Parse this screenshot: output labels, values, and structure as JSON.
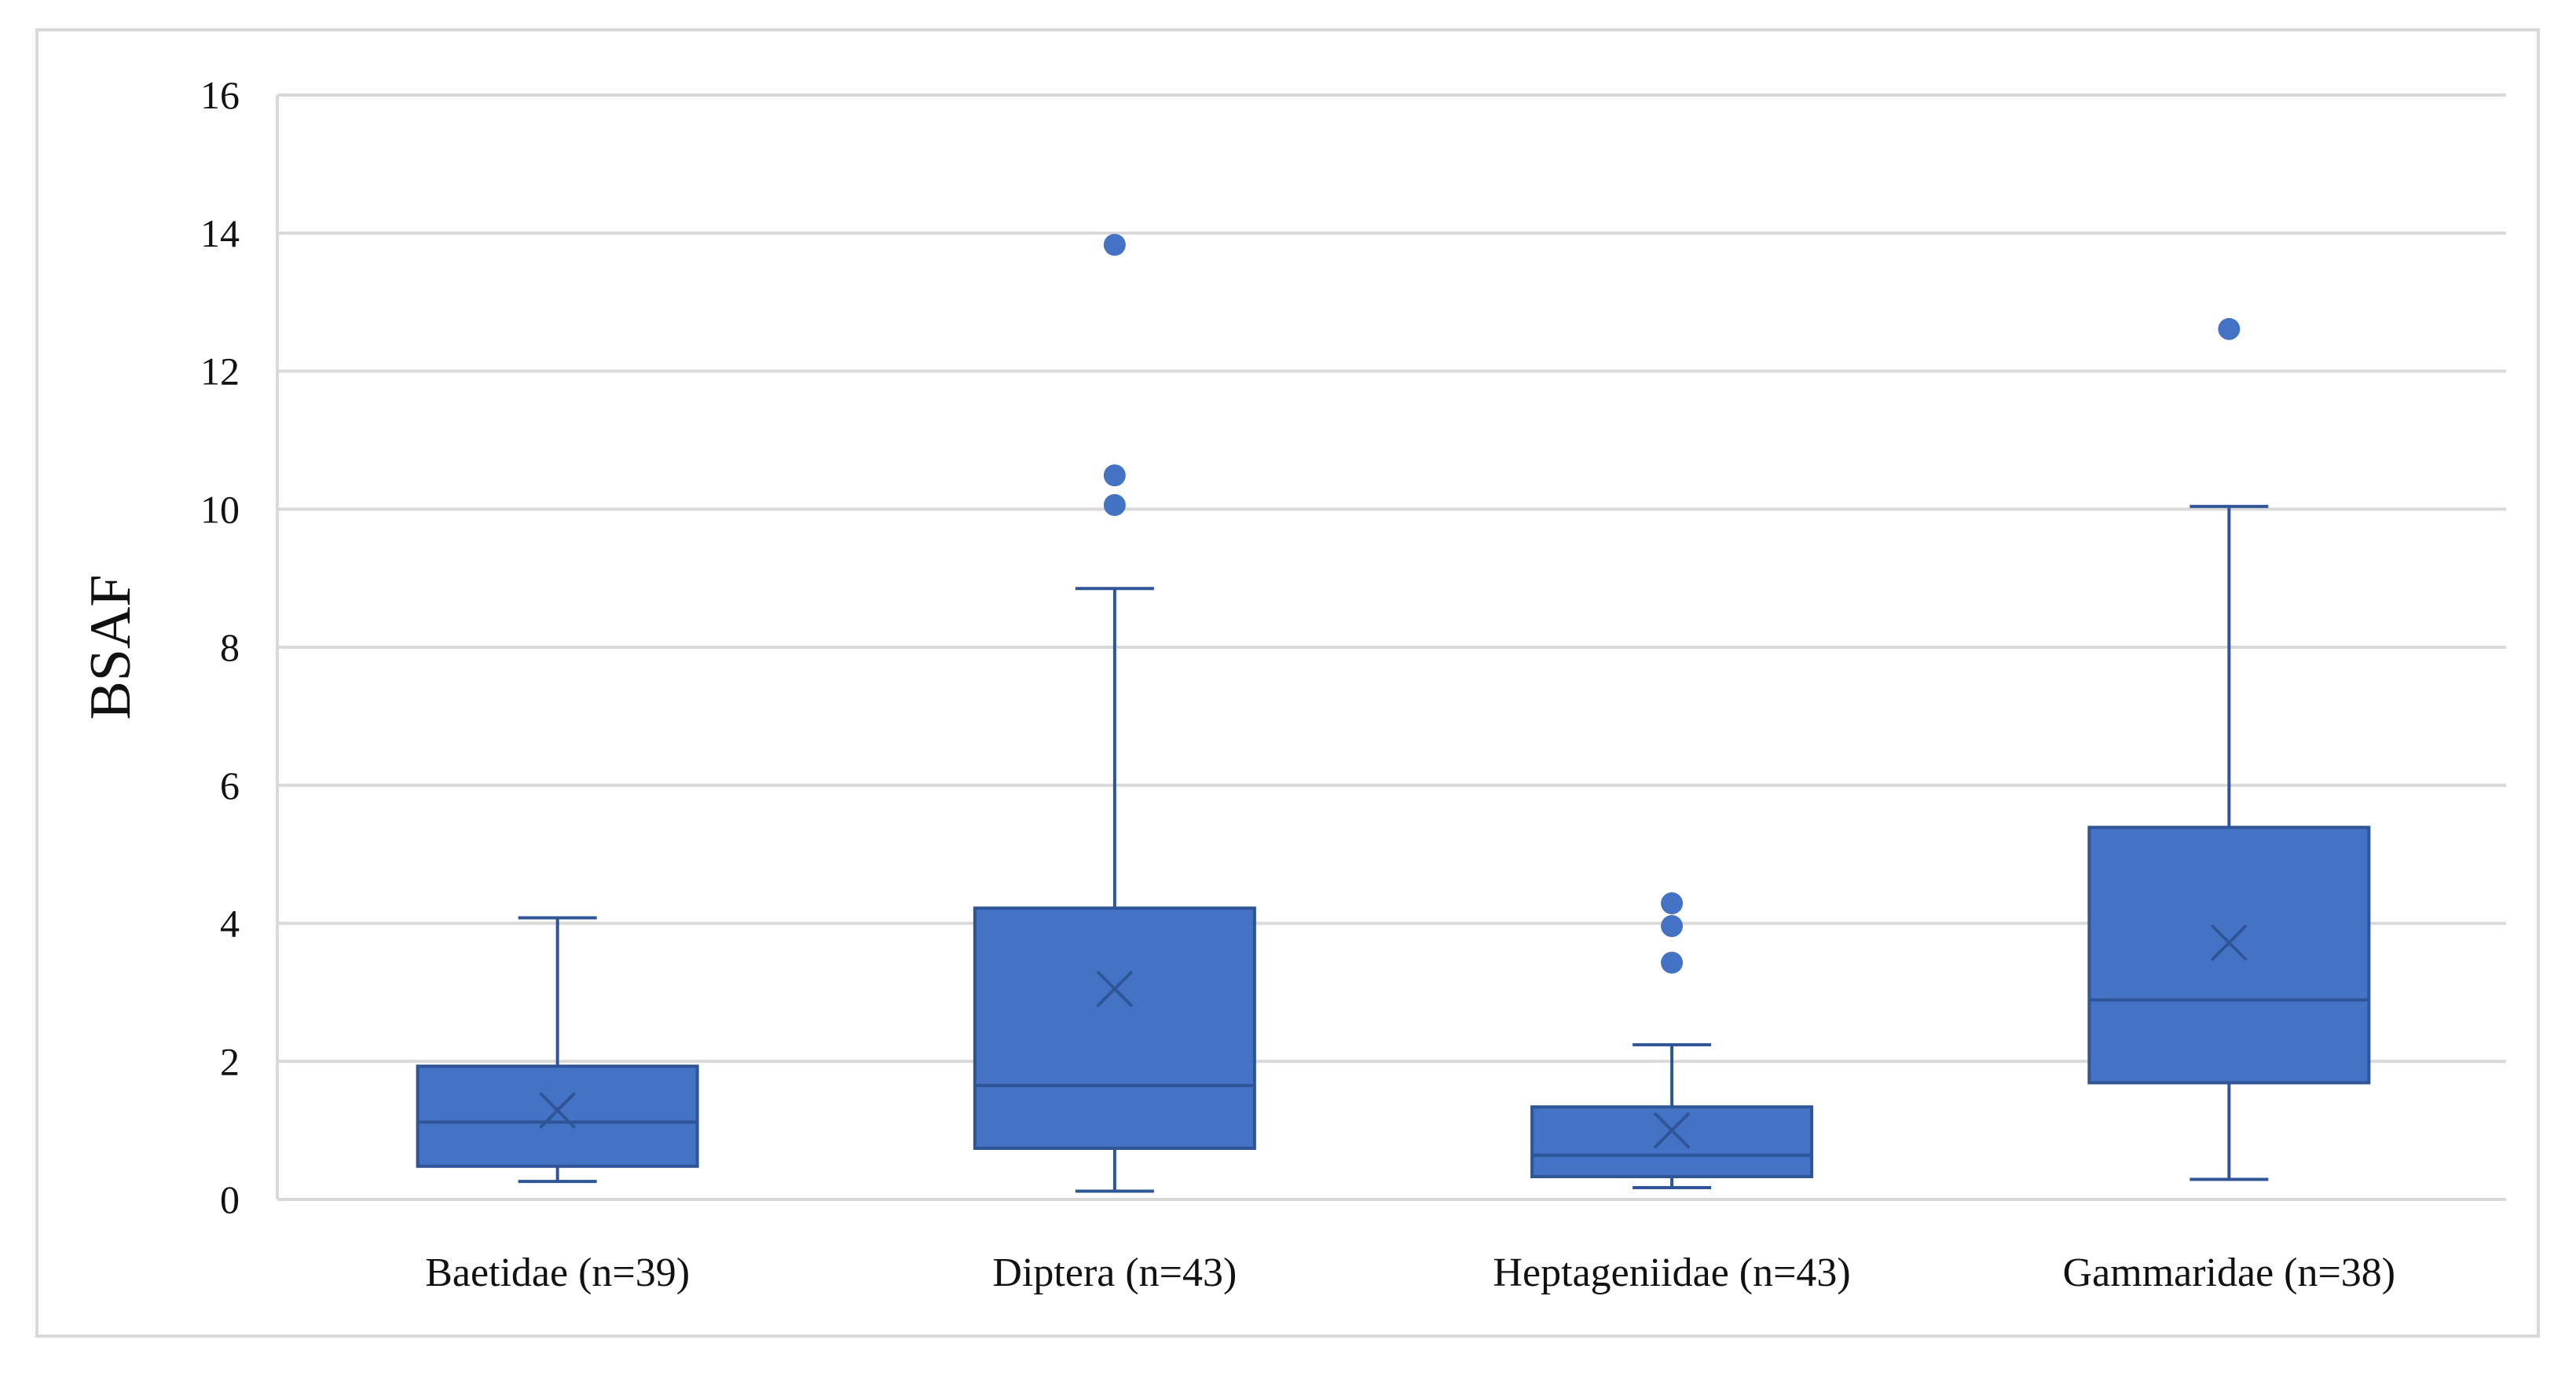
{
  "chart_data": {
    "type": "box",
    "title": "",
    "xlabel": "",
    "ylabel": "BSAF",
    "ylim": [
      0,
      16
    ],
    "yticks": [
      0,
      2,
      4,
      6,
      8,
      10,
      12,
      14,
      16
    ],
    "grid": true,
    "legend": "none",
    "color": "#4472C4",
    "edge_color": "#2F5597",
    "categories": [
      "Baetidae (n=39)",
      "Diptera (n=43)",
      "Heptageniidae (n=43)",
      "Gammaridae (n=38)"
    ],
    "boxes": [
      {
        "whisker_low": 0.26,
        "q1": 0.48,
        "median": 1.12,
        "mean": 1.29,
        "q3": 1.93,
        "whisker_high": 4.08,
        "outliers": []
      },
      {
        "whisker_low": 0.12,
        "q1": 0.74,
        "median": 1.65,
        "mean": 3.05,
        "q3": 4.22,
        "whisker_high": 8.85,
        "outliers": [
          10.06,
          10.49,
          13.83
        ]
      },
      {
        "whisker_low": 0.17,
        "q1": 0.33,
        "median": 0.64,
        "mean": 1.0,
        "q3": 1.34,
        "whisker_high": 2.24,
        "outliers": [
          3.43,
          3.96,
          4.29
        ]
      },
      {
        "whisker_low": 0.29,
        "q1": 1.69,
        "median": 2.89,
        "mean": 3.72,
        "q3": 5.39,
        "whisker_high": 10.04,
        "outliers": [
          12.61
        ]
      }
    ]
  }
}
